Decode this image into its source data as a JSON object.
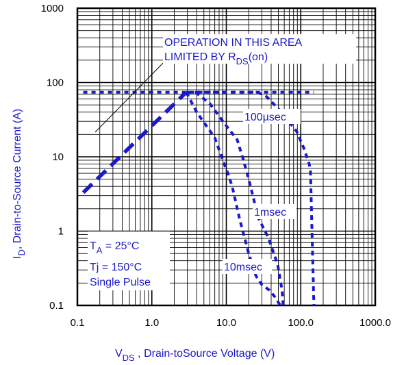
{
  "chart_data": {
    "type": "line",
    "title": "",
    "xscale": "log",
    "yscale": "log",
    "xlim": [
      0.1,
      1000
    ],
    "ylim": [
      0.1,
      1000
    ],
    "x_ticks": [
      "0.1",
      "1.0",
      "10.0",
      "100.0",
      "1000.0"
    ],
    "y_ticks": [
      "0.1",
      "1",
      "10",
      "100",
      "1000"
    ],
    "xlabel": {
      "main": "V",
      "sub": "DS",
      "rest": " , Drain-toSource Voltage (V)"
    },
    "ylabel": {
      "main": "I",
      "sub": "D",
      "rest": ",  Drain-to-Source Current (A)"
    },
    "grid": true,
    "colors": {
      "series": "#1a1acc",
      "text": "#1a1acc",
      "axes": "#000000"
    },
    "series": [
      {
        "name": "RDS(on) limit",
        "x": [
          0.12,
          2.9
        ],
        "y": [
          3.3,
          74
        ]
      },
      {
        "name": "current limit",
        "x": [
          0.12,
          150
        ],
        "y": [
          74,
          74
        ]
      },
      {
        "name": "100µsec",
        "x": [
          2.9,
          25,
          33,
          55,
          88,
          110,
          130,
          135,
          150
        ],
        "y": [
          74,
          74,
          68,
          40,
          22,
          13,
          8,
          6.5,
          0.1
        ]
      },
      {
        "name": "1msec",
        "x": [
          2.9,
          4,
          6,
          9,
          14,
          17,
          20,
          27,
          37,
          49,
          56,
          58
        ],
        "y": [
          74,
          72,
          52,
          30,
          17,
          9,
          5,
          1.5,
          0.8,
          0.35,
          0.16,
          0.1
        ]
      },
      {
        "name": "10msec",
        "x": [
          2.9,
          4,
          7,
          9,
          10.5,
          12,
          15,
          20,
          25,
          30,
          33,
          35,
          38,
          45,
          53
        ],
        "y": [
          74,
          40,
          18,
          9,
          6,
          4,
          1.5,
          0.5,
          0.25,
          0.19,
          0.18,
          0.17,
          0.16,
          0.13,
          0.1
        ]
      }
    ],
    "annotations": {
      "operation_area": {
        "line1": "OPERATION IN THIS AREA",
        "line2_prefix": "LIMITED BY R",
        "line2_sub": "DS",
        "line2_suffix": "(on)"
      },
      "labels": [
        "100µsec",
        "1msec",
        "10msec"
      ],
      "conditions": {
        "ta_main": "T",
        "ta_sub": "A",
        "ta_rest": " = 25°C",
        "tj": "Tj = 150°C",
        "pulse": "Single Pulse"
      }
    }
  }
}
